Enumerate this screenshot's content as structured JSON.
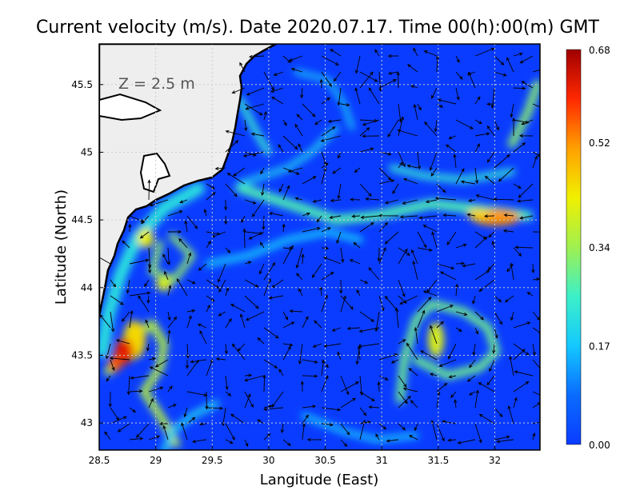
{
  "chart_data": {
    "type": "heatmap",
    "title": "Current velocity (m/s). Date 2020.07.17. Time 00(h):00(m) GMT",
    "xlabel": "Langitude (East)",
    "ylabel": "Latitude (North)",
    "annotation": "Z = 2.5 m",
    "xlim": [
      28.5,
      32.4
    ],
    "ylim": [
      42.8,
      45.8
    ],
    "x_ticks": [
      28.5,
      29,
      29.5,
      30,
      30.5,
      31,
      31.5,
      32
    ],
    "x_tick_labels": [
      "28.5",
      "29",
      "29.5",
      "30",
      "30.5",
      "31",
      "31.5",
      "32"
    ],
    "y_ticks": [
      43,
      43.5,
      44,
      44.5,
      45,
      45.5
    ],
    "y_tick_labels": [
      "43",
      "43.5",
      "44",
      "44.5",
      "45",
      "45.5"
    ],
    "grid": true,
    "colorbar": {
      "min": 0.0,
      "max": 0.68,
      "tick_labels": [
        "0.00",
        "0.17",
        "0.34",
        "0.52",
        "0.68"
      ],
      "tick_values": [
        0.0,
        0.17,
        0.34,
        0.52,
        0.68
      ],
      "colors": [
        "#0a3cff",
        "#0a6cff",
        "#14c8ff",
        "#3cf0c8",
        "#a0f050",
        "#f0f000",
        "#ffa000",
        "#ff2800",
        "#a00000"
      ]
    },
    "colors": {
      "land": "#eeeeee",
      "sea": "#0a3cff",
      "coast": "#000000",
      "arrow": "#000000"
    }
  }
}
